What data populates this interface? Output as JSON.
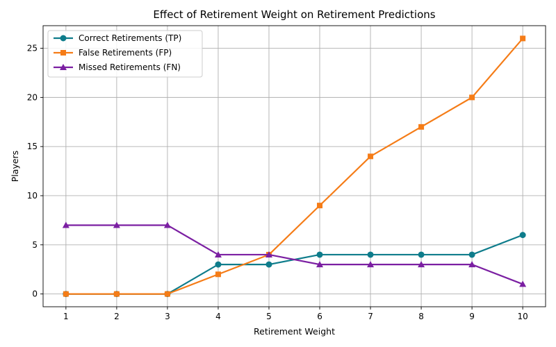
{
  "chart_data": {
    "type": "line",
    "title": "Effect of Retirement Weight on Retirement Predictions",
    "xlabel": "Retirement Weight",
    "ylabel": "Players",
    "x": [
      1,
      2,
      3,
      4,
      5,
      6,
      7,
      8,
      9,
      10
    ],
    "xlim": [
      0.55,
      10.45
    ],
    "ylim": [
      -1.3,
      27.3
    ],
    "xticks": [
      1,
      2,
      3,
      4,
      5,
      6,
      7,
      8,
      9,
      10
    ],
    "yticks": [
      0,
      5,
      10,
      15,
      20,
      25
    ],
    "grid": true,
    "legend_position": "top-left",
    "series": [
      {
        "name": "Correct Retirements (TP)",
        "color": "#0e7c8b",
        "marker": "circle",
        "values": [
          0,
          0,
          0,
          3,
          3,
          4,
          4,
          4,
          4,
          6
        ]
      },
      {
        "name": "False Retirements (FP)",
        "color": "#f57c17",
        "marker": "square",
        "values": [
          0,
          0,
          0,
          2,
          4,
          9,
          14,
          17,
          20,
          26
        ]
      },
      {
        "name": "Missed Retirements (FN)",
        "color": "#7b1fa2",
        "marker": "triangle",
        "values": [
          7,
          7,
          7,
          4,
          4,
          3,
          3,
          3,
          3,
          1
        ]
      }
    ]
  }
}
